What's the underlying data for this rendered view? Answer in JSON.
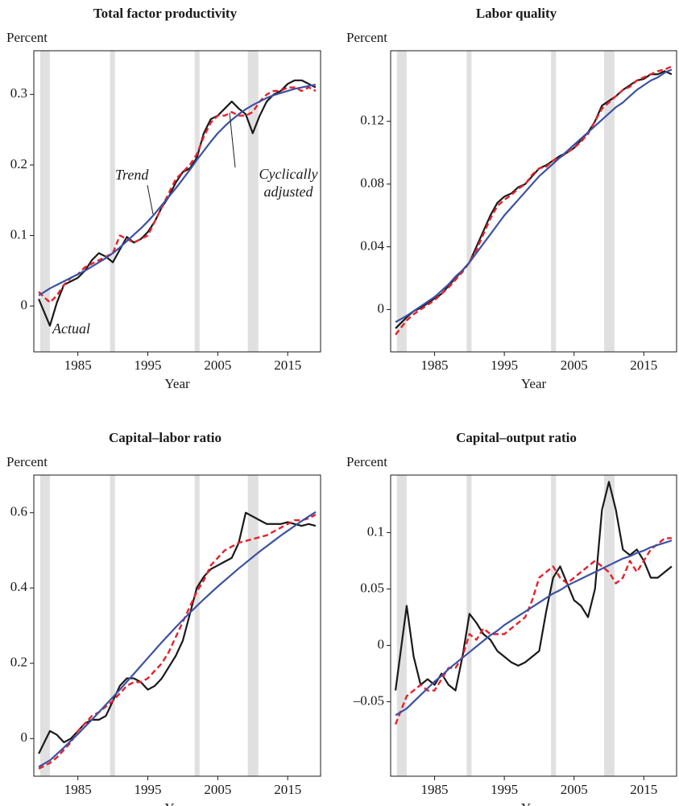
{
  "chart_data": [
    {
      "type": "line",
      "title": "Total factor productivity",
      "y_label": "Percent",
      "x_label": "Year",
      "xlim": [
        1978.7,
        2019.7
      ],
      "xticks": [
        1985,
        1995,
        2005,
        2015
      ],
      "ylim": [
        -0.065,
        0.362
      ],
      "yticks": [
        0,
        0.1,
        0.2,
        0.3
      ],
      "shaded_periods": [
        [
          1979.6,
          1981.0
        ],
        [
          1989.6,
          1990.3
        ],
        [
          2001.7,
          2002.4
        ],
        [
          2009.3,
          2010.8
        ]
      ],
      "shade_color": "#e0e0e0",
      "x": [
        1979.4,
        1981,
        1982,
        1983,
        1984,
        1985,
        1986,
        1987,
        1988,
        1989,
        1990,
        1991,
        1992,
        1993,
        1994,
        1995,
        1996,
        1997,
        1998,
        1999,
        2000,
        2001,
        2002,
        2003,
        2004,
        2005,
        2006,
        2007,
        2008,
        2009,
        2010,
        2011,
        2012,
        2013,
        2014,
        2015,
        2016,
        2017,
        2018,
        2019
      ],
      "series": [
        {
          "color": "#1a1a1a",
          "style": "solid",
          "values": [
            0.01,
            -0.028,
            0.005,
            0.03,
            0.035,
            0.04,
            0.05,
            0.065,
            0.075,
            0.07,
            0.062,
            0.08,
            0.098,
            0.09,
            0.095,
            0.105,
            0.12,
            0.14,
            0.155,
            0.175,
            0.19,
            0.195,
            0.21,
            0.245,
            0.265,
            0.27,
            0.28,
            0.29,
            0.28,
            0.272,
            0.245,
            0.27,
            0.29,
            0.3,
            0.305,
            0.315,
            0.32,
            0.32,
            0.315,
            0.31
          ]
        },
        {
          "color": "#e8202a",
          "style": "dashed",
          "values": [
            0.02,
            0.005,
            0.015,
            0.03,
            0.04,
            0.045,
            0.055,
            0.06,
            0.065,
            0.07,
            0.075,
            0.1,
            0.095,
            0.09,
            0.095,
            0.1,
            0.12,
            0.14,
            0.16,
            0.18,
            0.19,
            0.2,
            0.215,
            0.24,
            0.26,
            0.27,
            0.27,
            0.275,
            0.27,
            0.27,
            0.275,
            0.29,
            0.3,
            0.305,
            0.305,
            0.31,
            0.31,
            0.305,
            0.31,
            0.305
          ]
        },
        {
          "color": "#3a52a3",
          "style": "solid",
          "values": [
            0.015,
            0.025,
            0.03,
            0.035,
            0.04,
            0.045,
            0.05,
            0.056,
            0.062,
            0.068,
            0.075,
            0.083,
            0.092,
            0.101,
            0.11,
            0.12,
            0.131,
            0.143,
            0.155,
            0.167,
            0.18,
            0.193,
            0.207,
            0.22,
            0.233,
            0.245,
            0.255,
            0.264,
            0.272,
            0.279,
            0.285,
            0.29,
            0.295,
            0.299,
            0.302,
            0.305,
            0.308,
            0.31,
            0.312,
            0.314
          ]
        }
      ],
      "annotations": [
        "Trend",
        "Cyclically adjusted",
        "Actual"
      ]
    },
    {
      "type": "line",
      "title": "Labor quality",
      "y_label": "Percent",
      "x_label": "Year",
      "xlim": [
        1978.7,
        2019.7
      ],
      "xticks": [
        1985,
        1995,
        2005,
        2015
      ],
      "ylim": [
        -0.027,
        0.165
      ],
      "yticks": [
        0,
        0.04,
        0.08,
        0.12
      ],
      "shaded_periods": [
        [
          1979.6,
          1981.0
        ],
        [
          1989.6,
          1990.3
        ],
        [
          2001.7,
          2002.4
        ],
        [
          2009.3,
          2010.8
        ]
      ],
      "shade_color": "#e0e0e0",
      "x": [
        1979.4,
        1981,
        1982,
        1983,
        1984,
        1985,
        1986,
        1987,
        1988,
        1989,
        1990,
        1991,
        1992,
        1993,
        1994,
        1995,
        1996,
        1997,
        1998,
        1999,
        2000,
        2001,
        2002,
        2003,
        2004,
        2005,
        2006,
        2007,
        2008,
        2009,
        2010,
        2011,
        2012,
        2013,
        2014,
        2015,
        2016,
        2017,
        2018,
        2019
      ],
      "series": [
        {
          "color": "#1a1a1a",
          "style": "solid",
          "values": [
            -0.012,
            -0.005,
            -0.001,
            0.001,
            0.004,
            0.007,
            0.01,
            0.015,
            0.02,
            0.025,
            0.03,
            0.04,
            0.05,
            0.06,
            0.068,
            0.072,
            0.074,
            0.078,
            0.08,
            0.085,
            0.09,
            0.092,
            0.095,
            0.098,
            0.1,
            0.103,
            0.108,
            0.113,
            0.12,
            0.13,
            0.133,
            0.136,
            0.14,
            0.143,
            0.146,
            0.147,
            0.15,
            0.15,
            0.152,
            0.15
          ]
        },
        {
          "color": "#e8202a",
          "style": "dashed",
          "values": [
            -0.016,
            -0.007,
            -0.003,
            0.0,
            0.003,
            0.006,
            0.01,
            0.014,
            0.019,
            0.024,
            0.03,
            0.038,
            0.048,
            0.058,
            0.066,
            0.07,
            0.073,
            0.077,
            0.08,
            0.086,
            0.09,
            0.091,
            0.095,
            0.097,
            0.1,
            0.103,
            0.107,
            0.112,
            0.12,
            0.128,
            0.132,
            0.136,
            0.14,
            0.142,
            0.146,
            0.148,
            0.15,
            0.152,
            0.153,
            0.155
          ]
        },
        {
          "color": "#3a52a3",
          "style": "solid",
          "values": [
            -0.008,
            -0.004,
            -0.001,
            0.002,
            0.005,
            0.008,
            0.012,
            0.016,
            0.021,
            0.025,
            0.03,
            0.036,
            0.042,
            0.048,
            0.054,
            0.06,
            0.065,
            0.07,
            0.075,
            0.08,
            0.085,
            0.089,
            0.093,
            0.097,
            0.101,
            0.105,
            0.109,
            0.113,
            0.117,
            0.121,
            0.125,
            0.129,
            0.132,
            0.136,
            0.14,
            0.143,
            0.146,
            0.148,
            0.151,
            0.153
          ]
        }
      ]
    },
    {
      "type": "line",
      "title": "Capital–labor ratio",
      "y_label": "Percent",
      "x_label": "Year",
      "xlim": [
        1978.7,
        2019.7
      ],
      "xticks": [
        1985,
        1995,
        2005,
        2015
      ],
      "ylim": [
        -0.1,
        0.7
      ],
      "yticks": [
        0,
        0.2,
        0.4,
        0.6
      ],
      "shaded_periods": [
        [
          1979.6,
          1981.0
        ],
        [
          1989.6,
          1990.3
        ],
        [
          2001.7,
          2002.4
        ],
        [
          2009.3,
          2010.8
        ]
      ],
      "shade_color": "#e0e0e0",
      "x": [
        1979.4,
        1981,
        1982,
        1983,
        1984,
        1985,
        1986,
        1987,
        1988,
        1989,
        1990,
        1991,
        1992,
        1993,
        1994,
        1995,
        1996,
        1997,
        1998,
        1999,
        2000,
        2001,
        2002,
        2003,
        2004,
        2005,
        2006,
        2007,
        2008,
        2009,
        2010,
        2011,
        2012,
        2013,
        2014,
        2015,
        2016,
        2017,
        2018,
        2019
      ],
      "series": [
        {
          "color": "#1a1a1a",
          "style": "solid",
          "values": [
            -0.04,
            0.02,
            0.01,
            -0.01,
            0.0,
            0.02,
            0.04,
            0.05,
            0.05,
            0.06,
            0.1,
            0.14,
            0.16,
            0.16,
            0.15,
            0.13,
            0.14,
            0.16,
            0.19,
            0.22,
            0.26,
            0.33,
            0.4,
            0.43,
            0.45,
            0.46,
            0.47,
            0.48,
            0.52,
            0.6,
            0.59,
            0.58,
            0.57,
            0.57,
            0.57,
            0.575,
            0.57,
            0.565,
            0.57,
            0.565
          ]
        },
        {
          "color": "#e8202a",
          "style": "dashed",
          "values": [
            -0.08,
            -0.065,
            -0.05,
            -0.03,
            -0.01,
            0.02,
            0.04,
            0.06,
            0.07,
            0.085,
            0.1,
            0.12,
            0.14,
            0.15,
            0.15,
            0.16,
            0.18,
            0.2,
            0.23,
            0.27,
            0.31,
            0.35,
            0.39,
            0.42,
            0.46,
            0.48,
            0.5,
            0.51,
            0.52,
            0.525,
            0.53,
            0.535,
            0.54,
            0.55,
            0.56,
            0.57,
            0.58,
            0.58,
            0.585,
            0.595
          ]
        },
        {
          "color": "#3a52a3",
          "style": "solid",
          "values": [
            -0.075,
            -0.058,
            -0.041,
            -0.024,
            -0.006,
            0.012,
            0.031,
            0.05,
            0.07,
            0.09,
            0.11,
            0.13,
            0.151,
            0.172,
            0.193,
            0.214,
            0.235,
            0.256,
            0.276,
            0.296,
            0.315,
            0.334,
            0.352,
            0.37,
            0.387,
            0.404,
            0.42,
            0.436,
            0.452,
            0.467,
            0.482,
            0.497,
            0.511,
            0.525,
            0.539,
            0.552,
            0.565,
            0.578,
            0.59,
            0.602
          ]
        }
      ]
    },
    {
      "type": "line",
      "title": "Capital–output ratio",
      "y_label": "Percent",
      "x_label": "Year",
      "xlim": [
        1978.7,
        2019.7
      ],
      "xticks": [
        1985,
        1995,
        2005,
        2015
      ],
      "ylim": [
        -0.116,
        0.151
      ],
      "yticks": [
        {
          "value": -0.05,
          "label": "–0.05"
        },
        0,
        0.05,
        0.1
      ],
      "shaded_periods": [
        [
          1979.6,
          1981.0
        ],
        [
          1989.6,
          1990.3
        ],
        [
          2001.7,
          2002.4
        ],
        [
          2009.3,
          2010.8
        ]
      ],
      "shade_color": "#e0e0e0",
      "x": [
        1979.4,
        1981,
        1982,
        1983,
        1984,
        1985,
        1986,
        1987,
        1988,
        1989,
        1990,
        1991,
        1992,
        1993,
        1994,
        1995,
        1996,
        1997,
        1998,
        1999,
        2000,
        2001,
        2002,
        2003,
        2004,
        2005,
        2006,
        2007,
        2008,
        2009,
        2010,
        2011,
        2012,
        2013,
        2014,
        2015,
        2016,
        2017,
        2018,
        2019
      ],
      "series": [
        {
          "color": "#1a1a1a",
          "style": "solid",
          "values": [
            -0.04,
            0.035,
            -0.01,
            -0.035,
            -0.03,
            -0.035,
            -0.025,
            -0.035,
            -0.04,
            -0.01,
            0.028,
            0.02,
            0.01,
            0.005,
            -0.005,
            -0.01,
            -0.015,
            -0.018,
            -0.015,
            -0.01,
            -0.005,
            0.03,
            0.06,
            0.07,
            0.055,
            0.04,
            0.035,
            0.025,
            0.05,
            0.12,
            0.145,
            0.12,
            0.085,
            0.08,
            0.085,
            0.075,
            0.06,
            0.06,
            0.065,
            0.07
          ]
        },
        {
          "color": "#e8202a",
          "style": "dashed",
          "values": [
            -0.07,
            -0.045,
            -0.04,
            -0.035,
            -0.04,
            -0.04,
            -0.03,
            -0.02,
            -0.02,
            -0.01,
            0.01,
            0.005,
            0.015,
            0.01,
            0.01,
            0.01,
            0.015,
            0.02,
            0.025,
            0.04,
            0.06,
            0.065,
            0.07,
            0.06,
            0.055,
            0.06,
            0.065,
            0.07,
            0.075,
            0.07,
            0.065,
            0.055,
            0.06,
            0.075,
            0.065,
            0.075,
            0.085,
            0.09,
            0.095,
            0.095
          ]
        },
        {
          "color": "#3a52a3",
          "style": "solid",
          "values": [
            -0.062,
            -0.056,
            -0.05,
            -0.044,
            -0.038,
            -0.032,
            -0.027,
            -0.021,
            -0.016,
            -0.011,
            -0.006,
            -0.001,
            0.004,
            0.009,
            0.013,
            0.018,
            0.022,
            0.026,
            0.03,
            0.034,
            0.038,
            0.042,
            0.046,
            0.049,
            0.053,
            0.056,
            0.059,
            0.062,
            0.065,
            0.068,
            0.071,
            0.074,
            0.077,
            0.079,
            0.082,
            0.084,
            0.087,
            0.089,
            0.091,
            0.093
          ]
        }
      ]
    }
  ]
}
